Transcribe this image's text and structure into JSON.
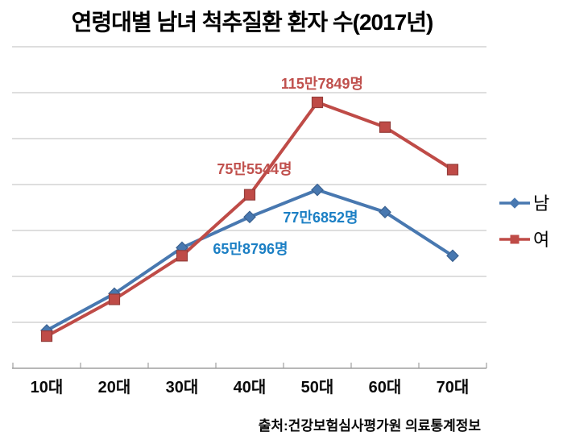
{
  "title": "연령대별 남녀 척추질환 환자 수(2017년)",
  "source": "출처:건강보험심사평가원 의료통계정보",
  "chart_data": {
    "type": "line",
    "title": "연령대별 남녀 척추질환 환자 수(2017년)",
    "categories": [
      "10대",
      "20대",
      "30대",
      "40대",
      "50대",
      "60대",
      "70대"
    ],
    "series": [
      {
        "name": "남",
        "color": "#4878b0",
        "marker": "diamond",
        "marker_border": "#3a6190",
        "values": [
          165000,
          325000,
          525000,
          658796,
          776852,
          680000,
          490000
        ]
      },
      {
        "name": "여",
        "color": "#bf4b47",
        "marker": "square",
        "marker_border": "#943c39",
        "values": [
          140000,
          300000,
          490000,
          755544,
          1157849,
          1050000,
          865000
        ]
      }
    ],
    "data_labels": [
      {
        "text": "115만7849명",
        "series": "여",
        "category": "50대",
        "value": 1157849,
        "color": "#c0504d"
      },
      {
        "text": "75만5544명",
        "series": "여",
        "category": "40대",
        "value": 755544,
        "color": "#c0504d"
      },
      {
        "text": "77만6852명",
        "series": "남",
        "category": "50대",
        "value": 776852,
        "color": "#1b7fc4"
      },
      {
        "text": "65만8796명",
        "series": "남",
        "category": "40대",
        "value": 658796,
        "color": "#1b7fc4"
      }
    ],
    "xlabel": "",
    "ylabel": "",
    "ylim": [
      0,
      1400000
    ],
    "gridline_step": 200000,
    "grid": true,
    "y_tick_labels_visible": false,
    "legend_position": "right"
  }
}
